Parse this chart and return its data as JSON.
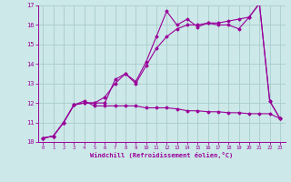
{
  "bg_color": "#cce8e8",
  "grid_color": "#aacccc",
  "line_color": "#990099",
  "xlabel": "Windchill (Refroidissement éolien,°C)",
  "xlim": [
    -0.5,
    23.5
  ],
  "ylim": [
    10.0,
    17.0
  ],
  "yticks": [
    10,
    11,
    12,
    13,
    14,
    15,
    16,
    17
  ],
  "xticks": [
    0,
    1,
    2,
    3,
    4,
    5,
    6,
    7,
    8,
    9,
    10,
    11,
    12,
    13,
    14,
    15,
    16,
    17,
    18,
    19,
    20,
    21,
    22,
    23
  ],
  "line1_x": [
    0,
    1,
    2,
    3,
    4,
    5,
    6,
    7,
    8,
    9,
    10,
    11,
    12,
    13,
    14,
    15,
    16,
    17,
    18,
    19,
    20,
    21,
    22,
    23
  ],
  "line1_y": [
    10.2,
    10.3,
    11.0,
    11.9,
    12.0,
    12.0,
    12.0,
    13.2,
    13.5,
    13.1,
    14.1,
    15.4,
    16.7,
    16.0,
    16.3,
    15.9,
    16.1,
    16.0,
    16.0,
    15.8,
    16.4,
    17.1,
    12.1,
    11.2
  ],
  "line2_x": [
    0,
    1,
    2,
    3,
    4,
    5,
    6,
    7,
    8,
    9,
    10,
    11,
    12,
    13,
    14,
    15,
    16,
    17,
    18,
    19,
    20,
    21,
    22,
    23
  ],
  "line2_y": [
    10.2,
    10.3,
    11.0,
    11.9,
    12.0,
    12.0,
    12.3,
    13.0,
    13.5,
    13.0,
    13.9,
    14.8,
    15.4,
    15.8,
    16.0,
    16.0,
    16.1,
    16.1,
    16.2,
    16.3,
    16.4,
    17.1,
    12.1,
    11.2
  ],
  "line3_x": [
    0,
    1,
    2,
    3,
    4,
    5,
    6,
    7,
    8,
    9,
    10,
    11,
    12,
    13,
    14,
    15,
    16,
    17,
    18,
    19,
    20,
    21,
    22,
    23
  ],
  "line3_y": [
    10.2,
    10.3,
    11.0,
    11.9,
    12.1,
    11.85,
    11.85,
    11.85,
    11.85,
    11.85,
    11.75,
    11.75,
    11.75,
    11.7,
    11.6,
    11.6,
    11.55,
    11.55,
    11.5,
    11.5,
    11.45,
    11.45,
    11.45,
    11.2
  ]
}
